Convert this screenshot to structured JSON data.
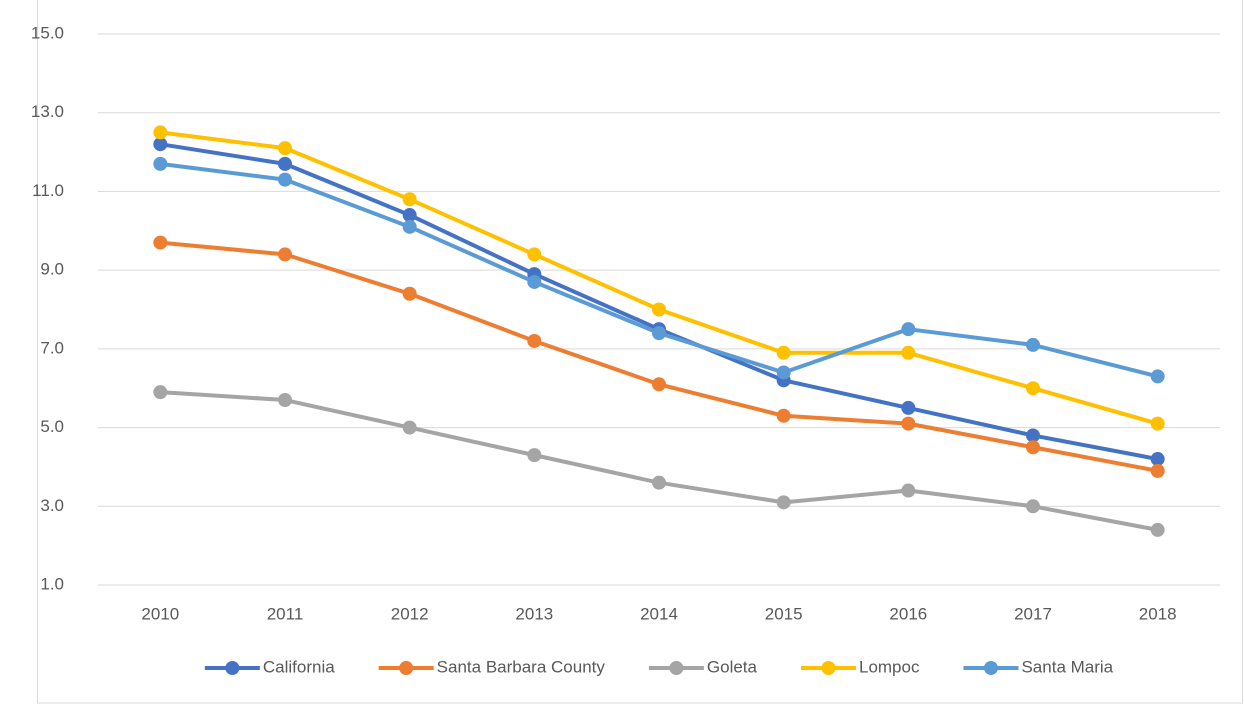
{
  "chart_data": {
    "type": "line",
    "categories": [
      "2010",
      "2011",
      "2012",
      "2013",
      "2014",
      "2015",
      "2016",
      "2017",
      "2018"
    ],
    "series": [
      {
        "name": "California",
        "color": "#4472c4",
        "values": [
          12.2,
          11.7,
          10.4,
          8.9,
          7.5,
          6.2,
          5.5,
          4.8,
          4.2
        ]
      },
      {
        "name": "Santa Barbara County",
        "color": "#ed7d31",
        "values": [
          9.7,
          9.4,
          8.4,
          7.2,
          6.1,
          5.3,
          5.1,
          4.5,
          3.9
        ]
      },
      {
        "name": "Goleta",
        "color": "#a5a5a5",
        "values": [
          5.9,
          5.7,
          5.0,
          4.3,
          3.6,
          3.1,
          3.4,
          3.0,
          2.4
        ]
      },
      {
        "name": "Lompoc",
        "color": "#ffc000",
        "values": [
          12.5,
          12.1,
          10.8,
          9.4,
          8.0,
          6.9,
          6.9,
          6.0,
          5.1
        ]
      },
      {
        "name": "Santa Maria",
        "color": "#5b9bd5",
        "values": [
          11.7,
          11.3,
          10.1,
          8.7,
          7.4,
          6.4,
          7.5,
          7.1,
          6.3
        ]
      }
    ],
    "ylim": [
      1,
      15
    ],
    "yticks": [
      {
        "value": 1,
        "label": "1.0"
      },
      {
        "value": 3,
        "label": "3.0"
      },
      {
        "value": 5,
        "label": "5.0"
      },
      {
        "value": 7,
        "label": "7.0"
      },
      {
        "value": 9,
        "label": "9.0"
      },
      {
        "value": 11,
        "label": "11.0"
      },
      {
        "value": 13,
        "label": "13.0"
      },
      {
        "value": 15,
        "label": "15.0"
      }
    ],
    "grid": true,
    "legend": "bottom"
  }
}
